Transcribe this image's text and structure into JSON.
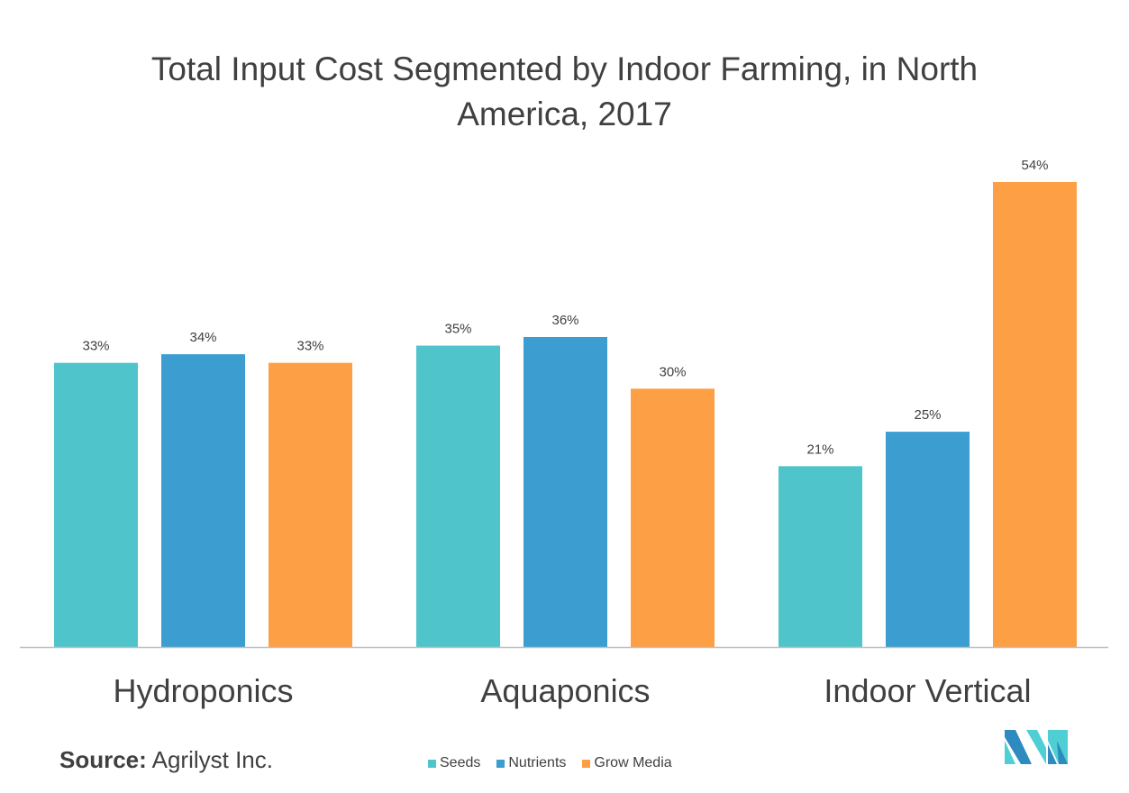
{
  "chart_data": {
    "type": "bar",
    "title": "Total Input Cost Segmented by Indoor Farming, in North America, 2017",
    "title_lines": [
      "Total Input Cost Segmented by Indoor Farming, in North",
      "America, 2017"
    ],
    "categories": [
      "Hydroponics",
      "Aquaponics",
      "Indoor Vertical"
    ],
    "series": [
      {
        "name": "Seeds",
        "color": "#4fc4ca",
        "values": [
          33,
          35,
          21
        ]
      },
      {
        "name": "Nutrients",
        "color": "#3b9dd0",
        "values": [
          34,
          36,
          25
        ]
      },
      {
        "name": "Grow Media",
        "color": "#fd9f45",
        "values": [
          33,
          30,
          54
        ]
      }
    ],
    "value_suffix": "%",
    "ylim": [
      0,
      60
    ],
    "grid": false,
    "legend_position": "bottom-center",
    "xlabel": "",
    "ylabel": ""
  },
  "source": {
    "label": "Source:",
    "text": "Agrilyst Inc."
  }
}
